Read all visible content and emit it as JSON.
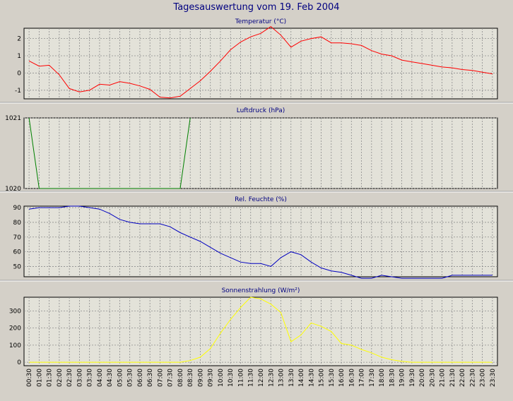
{
  "page_title": "Tagesauswertung vom 19. Feb 2004",
  "x_tick_labels": [
    "00:30",
    "01:00",
    "01:30",
    "02:00",
    "02:30",
    "03:00",
    "03:30",
    "04:00",
    "04:30",
    "05:00",
    "05:30",
    "06:00",
    "06:30",
    "07:00",
    "07:30",
    "08:00",
    "08:30",
    "09:00",
    "09:30",
    "10:00",
    "10:30",
    "11:00",
    "11:30",
    "12:00",
    "12:30",
    "13:00",
    "13:30",
    "14:00",
    "14:30",
    "15:00",
    "15:30",
    "16:00",
    "16:30",
    "17:00",
    "17:30",
    "18:00",
    "18:30",
    "19:00",
    "19:30",
    "20:00",
    "20:30",
    "21:00",
    "21:30",
    "22:00",
    "22:30",
    "23:00",
    "23:30"
  ],
  "colors": {
    "background": "#d4d0c8",
    "plot_area": "#e3e2d9",
    "title_text": "#000080",
    "panel_title_text": "#000080",
    "temperature": "#ff0000",
    "pressure": "#008000",
    "humidity": "#0000c0",
    "radiation": "#ffff00"
  },
  "chart_data": [
    {
      "type": "line",
      "title": "Temperatur (°C)",
      "ylim": [
        -1.5,
        2.6
      ],
      "yticks": [
        -1,
        0,
        1,
        2
      ],
      "ytick_labels": [
        "-1",
        "0",
        "1",
        "2"
      ],
      "grid": true,
      "color": "#ff0000",
      "x": [
        "00:30",
        "01:00",
        "01:30",
        "02:00",
        "02:30",
        "03:00",
        "03:30",
        "04:00",
        "04:30",
        "05:00",
        "05:30",
        "06:00",
        "06:30",
        "07:00",
        "07:30",
        "08:00",
        "08:30",
        "09:00",
        "09:30",
        "10:00",
        "10:30",
        "11:00",
        "11:30",
        "12:00",
        "12:30",
        "13:00",
        "13:30",
        "14:00",
        "14:30",
        "15:00",
        "15:30",
        "16:00",
        "16:30",
        "17:00",
        "17:30",
        "18:00",
        "18:30",
        "19:00",
        "19:30",
        "20:00",
        "20:30",
        "21:00",
        "21:30",
        "22:00",
        "22:30",
        "23:00",
        "23:30"
      ],
      "values": [
        0.7,
        0.4,
        0.45,
        -0.1,
        -0.9,
        -1.1,
        -1.0,
        -0.65,
        -0.7,
        -0.5,
        -0.6,
        -0.75,
        -0.95,
        -1.4,
        -1.45,
        -1.35,
        -0.9,
        -0.45,
        0.1,
        0.7,
        1.35,
        1.8,
        2.1,
        2.3,
        2.7,
        2.2,
        1.5,
        1.85,
        2.0,
        2.1,
        1.75,
        1.75,
        1.7,
        1.6,
        1.3,
        1.1,
        1.0,
        0.75,
        0.65,
        0.55,
        0.45,
        0.35,
        0.3,
        0.2,
        0.15,
        0.05,
        -0.05
      ]
    },
    {
      "type": "line",
      "title": "Luftdruck (hPa)",
      "ylim": [
        1020,
        1021
      ],
      "yticks": [
        1020,
        1021
      ],
      "ytick_labels": [
        "1020",
        "1021"
      ],
      "grid": true,
      "color": "#008000",
      "x": [
        "00:30",
        "01:00",
        "08:00",
        "08:30"
      ],
      "values": [
        1021,
        1020,
        1020,
        1021
      ]
    },
    {
      "type": "line",
      "title": "Rel. Feuchte (%)",
      "ylim": [
        43,
        91
      ],
      "yticks": [
        50,
        60,
        70,
        80,
        90
      ],
      "ytick_labels": [
        "50",
        "60",
        "70",
        "80",
        "90"
      ],
      "grid": true,
      "color": "#0000c0",
      "x": [
        "00:30",
        "01:00",
        "01:30",
        "02:00",
        "02:30",
        "03:00",
        "03:30",
        "04:00",
        "04:30",
        "05:00",
        "05:30",
        "06:00",
        "06:30",
        "07:00",
        "07:30",
        "08:00",
        "08:30",
        "09:00",
        "09:30",
        "10:00",
        "10:30",
        "11:00",
        "11:30",
        "12:00",
        "12:30",
        "13:00",
        "13:30",
        "14:00",
        "14:30",
        "15:00",
        "15:30",
        "16:00",
        "16:30",
        "17:00",
        "17:30",
        "18:00",
        "18:30",
        "19:00",
        "19:30",
        "20:00",
        "20:30",
        "21:00",
        "21:30",
        "22:00",
        "22:30",
        "23:00",
        "23:30"
      ],
      "values": [
        89,
        90,
        90,
        90,
        91,
        91,
        90,
        89,
        86,
        82,
        80,
        79,
        79,
        79,
        77,
        73,
        70,
        67,
        63,
        59,
        56,
        53,
        52,
        52,
        50,
        56,
        60,
        58,
        53,
        49,
        47,
        46,
        44,
        42,
        42,
        44,
        43,
        42,
        42,
        42,
        42,
        42,
        44,
        44,
        44,
        44,
        44
      ]
    },
    {
      "type": "area",
      "title": "Sonnenstrahlung (W/m²)",
      "ylim": [
        -20,
        380
      ],
      "yticks": [
        0,
        100,
        200,
        300
      ],
      "ytick_labels": [
        "0",
        "100",
        "200",
        "300"
      ],
      "grid": true,
      "color": "#ffff00",
      "x": [
        "00:30",
        "01:00",
        "01:30",
        "02:00",
        "02:30",
        "03:00",
        "03:30",
        "04:00",
        "04:30",
        "05:00",
        "05:30",
        "06:00",
        "06:30",
        "07:00",
        "07:30",
        "08:00",
        "08:30",
        "09:00",
        "09:30",
        "10:00",
        "10:30",
        "11:00",
        "11:30",
        "12:00",
        "12:30",
        "13:00",
        "13:30",
        "14:00",
        "14:30",
        "15:00",
        "15:30",
        "16:00",
        "16:30",
        "17:00",
        "17:30",
        "18:00",
        "18:30",
        "19:00",
        "19:30",
        "20:00",
        "20:30",
        "21:00",
        "21:30",
        "22:00",
        "22:30",
        "23:00",
        "23:30"
      ],
      "values": [
        0,
        0,
        0,
        0,
        0,
        0,
        0,
        0,
        0,
        0,
        0,
        0,
        0,
        0,
        0,
        0,
        10,
        30,
        80,
        170,
        250,
        320,
        380,
        370,
        340,
        290,
        120,
        160,
        230,
        210,
        180,
        110,
        100,
        75,
        55,
        30,
        15,
        5,
        0,
        0,
        0,
        0,
        0,
        0,
        0,
        0,
        0
      ]
    }
  ]
}
